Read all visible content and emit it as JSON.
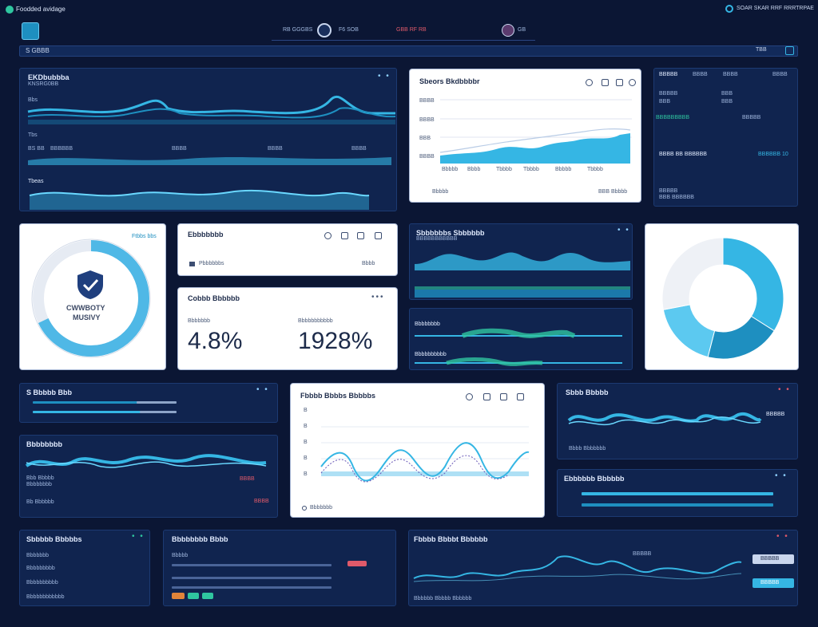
{
  "app": {
    "title": "Foodded avidage",
    "right_status": "SOAR SKAR RRF RRRTRPAE"
  },
  "topnav": {
    "item1": "RB GGGBS",
    "item2": "F6 SOB",
    "item3": "GBB RF RB",
    "item4": "GB"
  },
  "searchbar": {
    "value": "S GBBB",
    "right": "TBB"
  },
  "panel_a": {
    "title": "EKDbubbba",
    "subtitle": "KNSRG0BB",
    "label1": "Bbs",
    "row_label": "Tbs",
    "ticks": [
      "BS BB",
      "BBBBBB",
      "BBBB",
      "BBBB",
      "BBBB"
    ],
    "bottom_title": "Tbeas"
  },
  "panel_b": {
    "title": "Sbeors Bkdbbbbr",
    "y_ticks": [
      "BBBB",
      "BBBB",
      "BBB",
      "BBBB"
    ],
    "x_ticks": [
      "Bbbbb",
      "Bbbb",
      "Tbbbb",
      "Tbbbb",
      "Bbbbb",
      "Tbbbb"
    ],
    "legend": "Bbbbb",
    "right_legend": "BBB Bbbbb"
  },
  "panel_c": {
    "header": [
      "BBBBB",
      "BBBB",
      "BBBB",
      "BBBB"
    ],
    "rows": [
      [
        "BBBBB",
        "BBB"
      ],
      [
        "BBB",
        "BBB"
      ]
    ],
    "highlight": "BBBBBBBBB",
    "highlight2": "BBBBB",
    "big1": "BBBB BB BBBBBB",
    "big1_val": "BBBBBB 10",
    "r1": "BBBBB",
    "r2": "BBB BBBBBB"
  },
  "security": {
    "title": "Ftbbs bbs",
    "label_line1": "CWWBOTY",
    "label_line2": "MUSIVY",
    "ring_percent": 0.68
  },
  "panel_d": {
    "title": "Ebbbbbbb",
    "row_label": "Pbbbbbbs",
    "row_right": "Bbbb"
  },
  "kpi": {
    "title": "Cobbb Bbbbbb",
    "label1": "Bbbbbbb",
    "label2": "Bbbbbbbbbbb",
    "value1": "4.8%",
    "value2": "1928%"
  },
  "panel_e": {
    "title": "Sbbbbbbs Sbbbbbb",
    "subtitle": "BBBBBBBBBBB"
  },
  "panel_f": {
    "label1": "Bbbbbbbb",
    "label2": "Bbbbbbbbbb"
  },
  "donut": {
    "slices": [
      0.34,
      0.2,
      0.18,
      0.28
    ]
  },
  "panel_g": {
    "title": "S Bbbbb Bbb"
  },
  "panel_h": {
    "title": "Bbbbbbbb",
    "labels": [
      "Bbb Bbbbb",
      "Bbbbbbbb"
    ],
    "right": "BBBB",
    "right2": "BBBB",
    "foot": "Bb Bbbbbb"
  },
  "panel_i": {
    "title": "Fbbbb Bbbbs Bbbbbs",
    "y_ticks": [
      "B",
      "B",
      "B",
      "B",
      "B"
    ],
    "legend": "Bbbbbbb"
  },
  "panel_j": {
    "title": "Sbbb Bbbbb",
    "foot": "Bbbb Bbbbbbb",
    "right": "BBBBB"
  },
  "panel_k": {
    "title": "Ebbbbbb Bbbbbb"
  },
  "panel_l": {
    "title": "Sbbbbb Bbbbbs",
    "items": [
      "Bbbbbbb",
      "Bbbbbbbbb",
      "Bbbbbbbbbb",
      "Bbbbbbbbbbbb"
    ]
  },
  "panel_m": {
    "title": "Bbbbbbbb Bbbb",
    "label": "Bbbbb"
  },
  "panel_n": {
    "title": "Fbbbb Bbbbt Bbbbbb",
    "foot": "Bbbbbb Bbbbb Bbbbbb",
    "right_btn1": "BBBBB",
    "right_btn2": "BBBBB",
    "right_top": "BBBBB"
  },
  "colors": {
    "bg": "#0b1634",
    "card": "#10244f",
    "accent": "#35b6e4",
    "accent2": "#1e8fc0",
    "green": "#2fc6a0"
  }
}
